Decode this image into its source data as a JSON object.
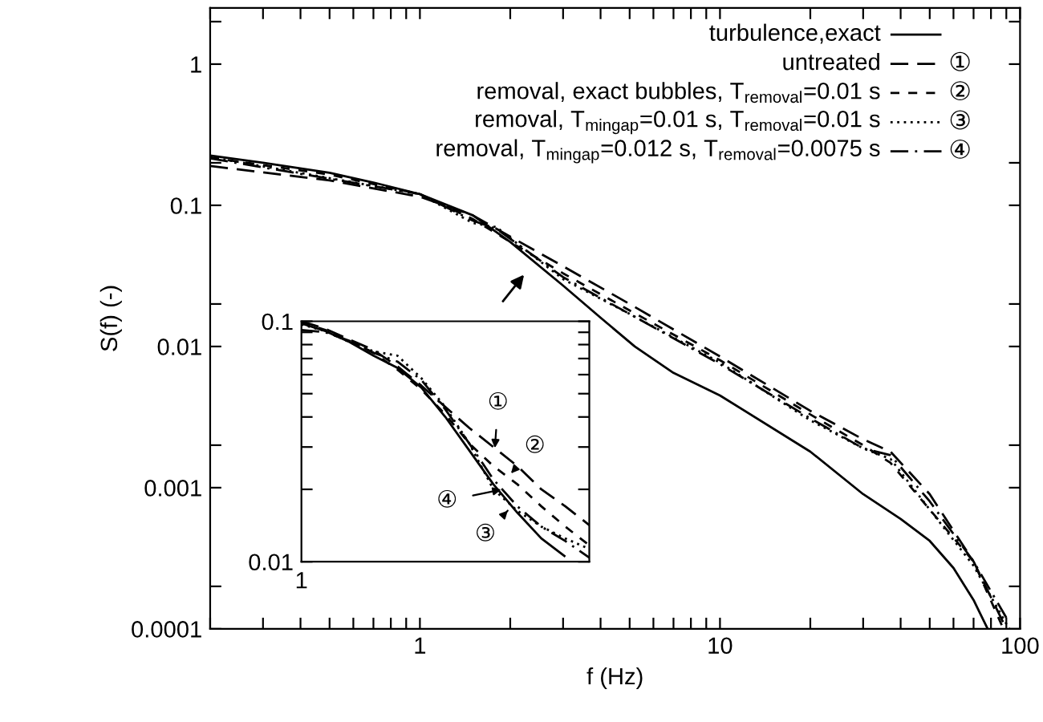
{
  "chart_data": [
    {
      "type": "line",
      "xlabel": "f (Hz)",
      "ylabel": "S(f) (-)",
      "log": "xy",
      "legend": "top right",
      "grid": false,
      "xlim": [
        0.2,
        100
      ],
      "ylim": [
        0.0001,
        2.5
      ],
      "xticks": [
        {
          "value": 0.2,
          "label": null
        },
        {
          "value": 0.3,
          "label": null
        },
        {
          "value": 0.4,
          "label": null
        },
        {
          "value": 0.5,
          "label": null
        },
        {
          "value": 0.6,
          "label": null
        },
        {
          "value": 0.7,
          "label": null
        },
        {
          "value": 0.8,
          "label": null
        },
        {
          "value": 0.9,
          "label": null
        },
        1,
        {
          "value": 2,
          "label": null
        },
        {
          "value": 3,
          "label": null
        },
        {
          "value": 4,
          "label": null
        },
        {
          "value": 5,
          "label": null
        },
        {
          "value": 6,
          "label": null
        },
        {
          "value": 7,
          "label": null
        },
        {
          "value": 8,
          "label": null
        },
        {
          "value": 9,
          "label": null
        },
        10,
        {
          "value": 20,
          "label": null
        },
        {
          "value": 30,
          "label": null
        },
        {
          "value": 40,
          "label": null
        },
        {
          "value": 50,
          "label": null
        },
        {
          "value": 60,
          "label": null
        },
        {
          "value": 70,
          "label": null
        },
        {
          "value": 80,
          "label": null
        },
        {
          "value": 90,
          "label": null
        },
        100
      ],
      "yticks": [
        0.0001,
        {
          "value": 0.0002,
          "label": null
        },
        0.001,
        {
          "value": 0.002,
          "label": null
        },
        0.01,
        {
          "value": 0.02,
          "label": null
        },
        0.1,
        {
          "value": 0.2,
          "label": null
        },
        1,
        {
          "value": 2,
          "label": null
        }
      ],
      "series": [
        {
          "name": "turbulence,exact",
          "color": "#000000",
          "line_style": "solid",
          "x": [
            0.2,
            0.3,
            0.5,
            0.7,
            1,
            1.5,
            2,
            3,
            4,
            5.2,
            7,
            10,
            20,
            30,
            40,
            50,
            60,
            70,
            78
          ],
          "values": [
            0.225,
            0.2,
            0.17,
            0.145,
            0.12,
            0.085,
            0.055,
            0.027,
            0.016,
            0.01,
            0.0065,
            0.0045,
            0.0018,
            0.0009,
            0.0006,
            0.00042,
            0.00027,
            0.00016,
            0.0001
          ]
        },
        {
          "name": "untreated",
          "color": "#000000",
          "line_style": "dashed",
          "x": [
            0.2,
            0.5,
            1,
            1.5,
            2,
            3,
            5,
            10,
            20,
            30,
            37,
            50,
            70,
            90
          ],
          "values": [
            0.19,
            0.15,
            0.115,
            0.085,
            0.06,
            0.037,
            0.02,
            0.0085,
            0.0035,
            0.0022,
            0.0018,
            0.0009,
            0.0003,
            0.0001
          ]
        },
        {
          "name": "removal, exact bubbles, T$_{removal}$=0.01 s",
          "color": "#000000",
          "line_style": "dashed",
          "x": [
            0.2,
            0.5,
            1,
            1.5,
            2,
            3,
            5,
            10,
            20,
            30,
            37,
            50,
            70,
            88
          ],
          "values": [
            0.218,
            0.165,
            0.12,
            0.08,
            0.055,
            0.033,
            0.018,
            0.008,
            0.0033,
            0.002,
            0.0015,
            0.0007,
            0.0003,
            0.0001
          ]
        },
        {
          "name": "removal, T$_{mingap}$=0.01 s, T$_{removal}$=0.01 s",
          "color": "#000000",
          "line_style": "dotted",
          "x": [
            0.2,
            1,
            1.5,
            1.8,
            2.2,
            3,
            5,
            10,
            20,
            30,
            37,
            50,
            70,
            92
          ],
          "values": [
            0.22,
            0.12,
            0.075,
            0.07,
            0.05,
            0.03,
            0.017,
            0.0077,
            0.003,
            0.0019,
            0.0016,
            0.0007,
            0.00028,
            0.0001
          ]
        },
        {
          "name": "removal, T$_{mingap}$=0.012 s, T$_{removal}$=0.0075 s",
          "color": "#000000",
          "line_style": "dashdot",
          "x": [
            0.2,
            1,
            1.5,
            1.8,
            2.2,
            3,
            5,
            10,
            20,
            30,
            37,
            50,
            70,
            90
          ],
          "values": [
            0.215,
            0.12,
            0.078,
            0.068,
            0.05,
            0.031,
            0.017,
            0.0075,
            0.0031,
            0.0019,
            0.0017,
            0.0008,
            0.0003,
            0.00012
          ]
        }
      ],
      "annotations": [
        "①",
        "②",
        "③",
        "④"
      ]
    },
    {
      "type": "line",
      "log": "y",
      "grid": false,
      "ylim": [
        0.01,
        0.1
      ],
      "categories": [
        null,
        null,
        null,
        null,
        null,
        null,
        null,
        null,
        null,
        null,
        null,
        null,
        null
      ],
      "yticks": [
        0.01,
        {
          "value": 0.02,
          "label": null
        },
        {
          "value": 0.03,
          "label": null
        },
        {
          "value": 0.04,
          "label": null
        },
        {
          "value": 0.05,
          "label": null
        },
        {
          "value": 0.06,
          "label": null
        },
        {
          "value": 0.07,
          "label": null
        },
        {
          "value": 0.08,
          "label": null
        },
        {
          "value": 0.09,
          "label": null
        },
        0.1
      ],
      "series": [
        {
          "color": "#000000",
          "line_style": "solid",
          "values": [
            0.098,
            0.091,
            0.082,
            0.072,
            0.064,
            0.053,
            0.04,
            0.029,
            0.021,
            0.016,
            0.0125,
            0.0105,
            null
          ]
        },
        {
          "color": "#000000",
          "line_style": "dashed",
          "values": [
            0.1,
            0.093,
            0.084,
            0.076,
            0.065,
            0.054,
            0.044,
            0.036,
            0.03,
            0.025,
            0.02,
            0.017,
            0.0142
          ]
        },
        {
          "color": "#000000",
          "line_style": "dashed",
          "values": [
            0.099,
            0.092,
            0.083,
            0.074,
            0.063,
            0.052,
            0.041,
            0.031,
            0.025,
            0.021,
            0.017,
            0.014,
            0.0117
          ]
        },
        {
          "color": "#000000",
          "line_style": "dotted",
          "values": [
            0.097,
            0.091,
            0.082,
            0.075,
            0.072,
            0.058,
            0.044,
            0.031,
            0.02,
            0.0163,
            0.014,
            0.0125,
            0.0113
          ]
        },
        {
          "color": "#000000",
          "line_style": "dashdot",
          "values": [
            0.092,
            0.09,
            0.083,
            0.074,
            0.068,
            0.057,
            0.043,
            0.031,
            0.022,
            0.017,
            0.014,
            0.0122,
            0.0104
          ]
        }
      ],
      "annotations": [
        "①",
        "②",
        "③",
        "④",
        "1"
      ]
    }
  ]
}
